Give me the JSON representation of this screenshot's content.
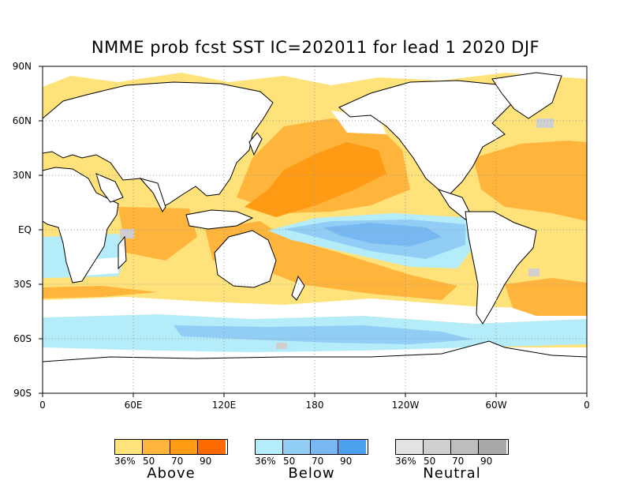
{
  "title": "NMME prob fcst SST IC=202011 for lead 1 2020 DJF",
  "lat_labels": [
    "90N",
    "60N",
    "30N",
    "EQ",
    "30S",
    "60S",
    "90S"
  ],
  "lon_labels": [
    "0",
    "60E",
    "120E",
    "180",
    "120W",
    "60W",
    "0"
  ],
  "legend": [
    {
      "name": "Above",
      "ticks": [
        "36%",
        "50",
        "70",
        "90"
      ],
      "colors": [
        "#ffe27a",
        "#ffb53c",
        "#ff9a14",
        "#ff6a00"
      ]
    },
    {
      "name": "Below",
      "ticks": [
        "36%",
        "50",
        "70",
        "90"
      ],
      "colors": [
        "#b4ecfa",
        "#92cdf6",
        "#78b8f2",
        "#4d9ff0"
      ]
    },
    {
      "name": "Neutral",
      "ticks": [
        "36%",
        "50",
        "70",
        "90"
      ],
      "colors": [
        "#e3e3e3",
        "#cfcfcf",
        "#bdbdbd",
        "#a8a8a8"
      ]
    }
  ],
  "colors": {
    "above_36": "#ffe27a",
    "above_50": "#ffb53c",
    "above_70": "#ff9a14",
    "below_36": "#b4ecfa",
    "below_50": "#92cdf6",
    "below_70": "#78b8f2",
    "neutral": "#cfcfcf",
    "land": "#ffffff",
    "coast": "#000000"
  }
}
